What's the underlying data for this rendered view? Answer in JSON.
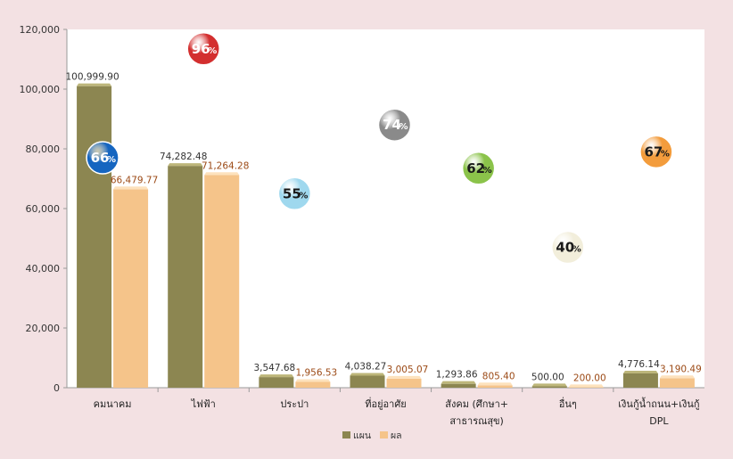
{
  "chart_data": {
    "type": "bar",
    "categories": [
      [
        "คมนาคม"
      ],
      [
        "ไฟฟ้า"
      ],
      [
        "ประปา"
      ],
      [
        "ที่อยู่อาศัย"
      ],
      [
        "สังคม (ศึกษา+",
        "สาธารณสุข)"
      ],
      [
        "อื่นๆ"
      ],
      [
        "เงินกู้น้ำถนน+เงินกู้",
        "DPL"
      ]
    ],
    "series": [
      {
        "name": "แผน",
        "values": [
          100999.9,
          74282.48,
          3547.68,
          4038.27,
          1293.86,
          500.0,
          4776.14
        ],
        "labels": [
          "100,999.90",
          "74,282.48",
          "3,547.68",
          "4,038.27",
          "1,293.86",
          "500.00",
          "4,776.14"
        ],
        "color": "#8c8651",
        "top_color": "#bdb67a",
        "label_color": "#333333"
      },
      {
        "name": "ผล",
        "values": [
          66479.77,
          71264.28,
          1956.53,
          3005.07,
          805.4,
          200.0,
          3190.49
        ],
        "labels": [
          "66,479.77",
          "71,264.28",
          "1,956.53",
          "3,005.07",
          "805.40",
          "200.00",
          "3,190.49"
        ],
        "color": "#f5c48a",
        "top_color": "#fde2bd",
        "label_color": "#9c4a16"
      }
    ],
    "percent_badges": [
      {
        "value": "66",
        "unit": "%",
        "level": 77000,
        "color": "#1565c0",
        "text_color": "#ffffff"
      },
      {
        "value": "96",
        "unit": "%",
        "level": 113500,
        "color": "#d32f2f",
        "text_color": "#ffffff"
      },
      {
        "value": "55",
        "unit": "%",
        "level": 65000,
        "color": "#9fd8ee",
        "text_color": "#1a1a1a"
      },
      {
        "value": "74",
        "unit": "%",
        "level": 88000,
        "color": "#8a8a8a",
        "text_color": "#ffffff"
      },
      {
        "value": "62",
        "unit": "%",
        "level": 73500,
        "color": "#8bc34a",
        "text_color": "#1a1a1a"
      },
      {
        "value": "40",
        "unit": "%",
        "level": 47000,
        "color": "#f2eedb",
        "text_color": "#1a1a1a"
      },
      {
        "value": "67",
        "unit": "%",
        "level": 79000,
        "color": "#f39c3c",
        "text_color": "#1a1a1a"
      }
    ],
    "yticks": [
      "0",
      "20,000",
      "40,000",
      "60,000",
      "80,000",
      "100,000",
      "120,000"
    ],
    "ylim": [
      0,
      120000
    ],
    "grid": false,
    "legend_position": "bottom",
    "background": "#f3e1e3",
    "plot_background": "#ffffff"
  }
}
